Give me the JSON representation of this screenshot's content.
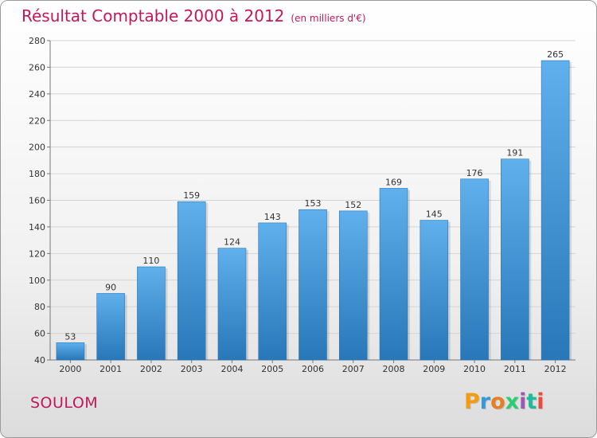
{
  "header": {
    "title": "Résultat Comptable 2000 à 2012",
    "subtitle": "(en milliers d'€)"
  },
  "footer": {
    "place": "SOULOM",
    "brand_letters": [
      "P",
      "r",
      "o",
      "x",
      "i",
      "t",
      "i"
    ],
    "brand_colors": [
      "#f39c12",
      "#3498db",
      "#e67e22",
      "#2ecc71",
      "#9b59b6",
      "#1abc9c",
      "#e74c3c"
    ]
  },
  "chart_data": {
    "type": "bar",
    "title": "Résultat Comptable 2000 à 2012",
    "subtitle": "(en milliers d'€)",
    "categories": [
      "2000",
      "2001",
      "2002",
      "2003",
      "2004",
      "2005",
      "2006",
      "2007",
      "2008",
      "2009",
      "2010",
      "2011",
      "2012"
    ],
    "values": [
      53,
      90,
      110,
      159,
      124,
      143,
      153,
      152,
      169,
      145,
      176,
      191,
      265
    ],
    "ylim": [
      40,
      280
    ],
    "yticks": [
      40,
      60,
      80,
      100,
      120,
      140,
      160,
      180,
      200,
      220,
      240,
      260,
      280
    ],
    "grid": true,
    "bar_color": "#3a8fd6",
    "xlabel": "",
    "ylabel": ""
  }
}
